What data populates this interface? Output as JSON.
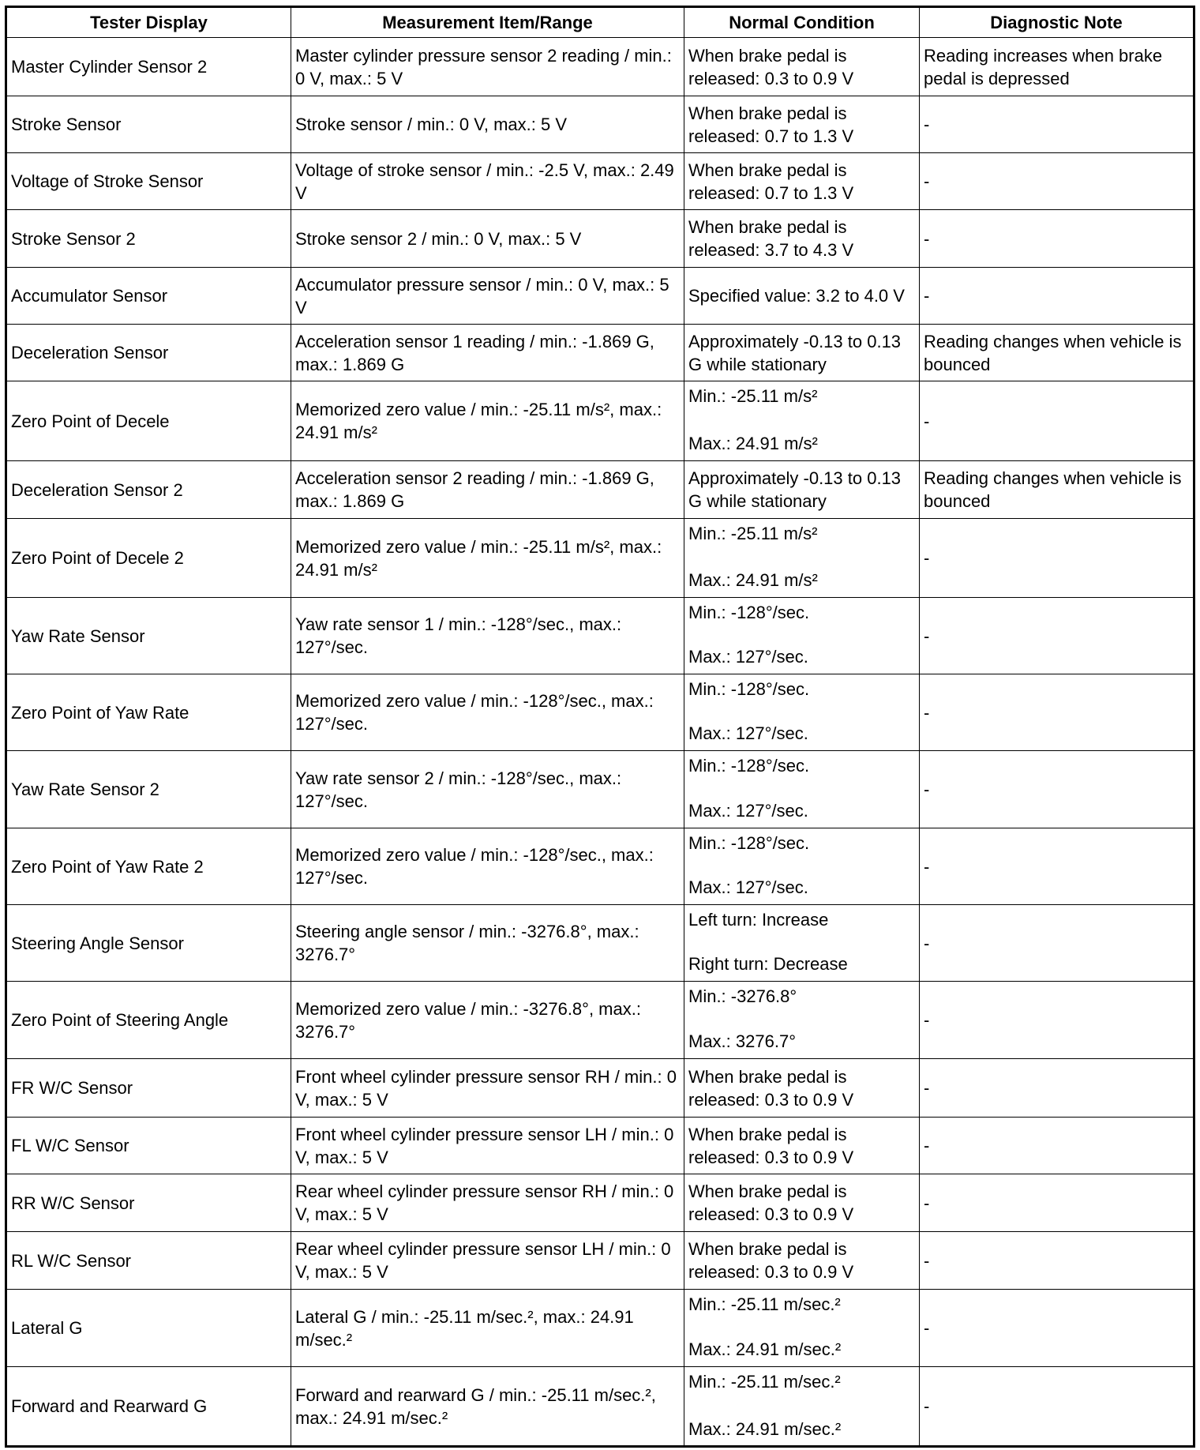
{
  "headers": [
    "Tester Display",
    "Measurement Item/Range",
    "Normal Condition",
    "Diagnostic Note"
  ],
  "rows": [
    {
      "display": "Master Cylinder Sensor 2",
      "range": "Master cylinder pressure sensor 2 reading / min.: 0 V, max.: 5 V",
      "normal": [
        "When brake pedal is released: 0.3 to 0.9 V"
      ],
      "note": "Reading increases when brake pedal is depressed"
    },
    {
      "display": "Stroke Sensor",
      "range": "Stroke sensor / min.: 0 V, max.: 5 V",
      "normal": [
        "When brake pedal is released: 0.7 to 1.3 V"
      ],
      "note": "-"
    },
    {
      "display": "Voltage of Stroke Sensor",
      "range": "Voltage of stroke sensor / min.: -2.5 V, max.: 2.49 V",
      "normal": [
        "When brake pedal is released: 0.7 to 1.3 V"
      ],
      "note": "-"
    },
    {
      "display": "Stroke Sensor 2",
      "range": "Stroke sensor 2 / min.: 0 V, max.: 5 V",
      "normal": [
        "When brake pedal is released: 3.7 to 4.3 V"
      ],
      "note": "-"
    },
    {
      "display": "Accumulator Sensor",
      "range": "Accumulator pressure sensor / min.: 0 V, max.: 5 V",
      "normal": [
        "Specified value: 3.2 to 4.0 V"
      ],
      "note": "-"
    },
    {
      "display": "Deceleration Sensor",
      "range": "Acceleration sensor 1 reading / min.: -1.869 G, max.: 1.869 G",
      "normal": [
        "Approximately -0.13 to 0.13 G while stationary"
      ],
      "note": "Reading changes when vehicle is bounced"
    },
    {
      "display": "Zero Point of Decele",
      "range": "Memorized zero value / min.: -25.11 m/s², max.: 24.91 m/s²",
      "normal": [
        "Min.: -25.11 m/s²",
        "Max.: 24.91 m/s²"
      ],
      "note": "-"
    },
    {
      "display": "Deceleration Sensor 2",
      "range": "Acceleration sensor 2 reading / min.: -1.869 G, max.: 1.869 G",
      "normal": [
        "Approximately -0.13 to 0.13 G while stationary"
      ],
      "note": "Reading changes when vehicle is bounced"
    },
    {
      "display": "Zero Point of Decele 2",
      "range": "Memorized zero value / min.: -25.11 m/s², max.: 24.91 m/s²",
      "normal": [
        "Min.: -25.11 m/s²",
        "Max.: 24.91 m/s²"
      ],
      "note": "-"
    },
    {
      "display": "Yaw Rate Sensor",
      "range": "Yaw rate sensor 1 / min.: -128°/sec., max.: 127°/sec.",
      "normal": [
        "Min.: -128°/sec.",
        "Max.: 127°/sec."
      ],
      "note": "-"
    },
    {
      "display": "Zero Point of Yaw Rate",
      "range": "Memorized zero value / min.: -128°/sec., max.: 127°/sec.",
      "normal": [
        "Min.: -128°/sec.",
        "Max.: 127°/sec."
      ],
      "note": "-"
    },
    {
      "display": "Yaw Rate Sensor 2",
      "range": "Yaw rate sensor 2 / min.: -128°/sec., max.: 127°/sec.",
      "normal": [
        "Min.: -128°/sec.",
        "Max.: 127°/sec."
      ],
      "note": "-"
    },
    {
      "display": "Zero Point of Yaw Rate 2",
      "range": "Memorized zero value / min.: -128°/sec., max.: 127°/sec.",
      "normal": [
        "Min.: -128°/sec.",
        "Max.: 127°/sec."
      ],
      "note": "-"
    },
    {
      "display": "Steering Angle Sensor",
      "range": "Steering angle sensor / min.: -3276.8°, max.: 3276.7°",
      "normal": [
        "Left turn: Increase",
        "Right turn: Decrease"
      ],
      "note": "-"
    },
    {
      "display": "Zero Point of Steering Angle",
      "range": "Memorized zero value / min.: -3276.8°, max.: 3276.7°",
      "normal": [
        "Min.: -3276.8°",
        "Max.: 3276.7°"
      ],
      "note": "-"
    },
    {
      "display": "FR W/C Sensor",
      "range": "Front wheel cylinder pressure sensor RH / min.: 0 V, max.: 5 V",
      "normal": [
        "When brake pedal is released: 0.3 to 0.9 V"
      ],
      "note": "-"
    },
    {
      "display": "FL W/C Sensor",
      "range": "Front wheel cylinder pressure sensor LH / min.: 0 V, max.: 5 V",
      "normal": [
        "When brake pedal is released: 0.3 to 0.9 V"
      ],
      "note": "-"
    },
    {
      "display": "RR W/C Sensor",
      "range": "Rear wheel cylinder pressure sensor RH / min.: 0 V, max.: 5 V",
      "normal": [
        "When brake pedal is released: 0.3 to 0.9 V"
      ],
      "note": "-"
    },
    {
      "display": "RL W/C Sensor",
      "range": "Rear wheel cylinder pressure sensor LH / min.: 0 V, max.: 5 V",
      "normal": [
        "When brake pedal is released: 0.3 to 0.9 V"
      ],
      "note": "-"
    },
    {
      "display": "Lateral G",
      "range": "Lateral G / min.: -25.11 m/sec.², max.: 24.91 m/sec.²",
      "normal": [
        "Min.: -25.11 m/sec.²",
        "Max.: 24.91 m/sec.²"
      ],
      "note": "-"
    },
    {
      "display": "Forward and Rearward G",
      "range": "Forward and rearward G / min.: -25.11 m/sec.², max.: 24.91 m/sec.²",
      "normal": [
        "Min.: -25.11 m/sec.²",
        "Max.: 24.91 m/sec.²"
      ],
      "note": "-"
    }
  ]
}
